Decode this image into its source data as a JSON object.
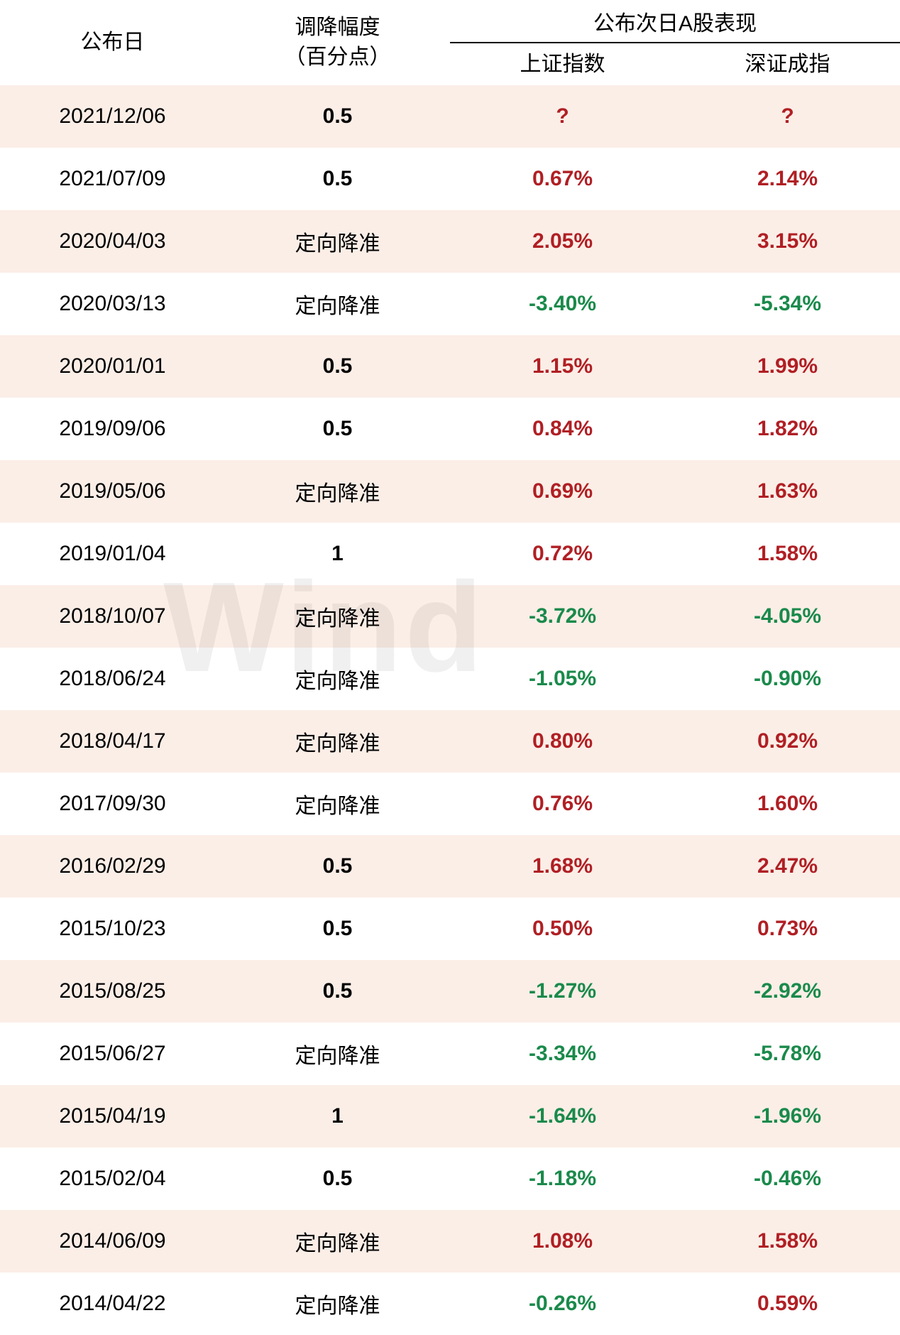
{
  "colors": {
    "positive": "#b01f24",
    "negative": "#1a8a4b",
    "text": "#000000",
    "row_odd_bg": "#fbeee7",
    "row_even_bg": "#ffffff"
  },
  "watermark": "Wind",
  "headers": {
    "date": "公布日",
    "amount_line1": "调降幅度",
    "amount_line2": "（百分点）",
    "group": "公布次日A股表现",
    "sh": "上证指数",
    "sz": "深证成指"
  },
  "column_widths": [
    "25%",
    "25%",
    "25%",
    "25%"
  ],
  "rows": [
    {
      "date": "2021/12/06",
      "amount": "0.5",
      "sh": "?",
      "sh_type": "unknown",
      "sz": "?",
      "sz_type": "unknown"
    },
    {
      "date": "2021/07/09",
      "amount": "0.5",
      "sh": "0.67%",
      "sh_type": "pos",
      "sz": "2.14%",
      "sz_type": "pos"
    },
    {
      "date": "2020/04/03",
      "amount": "定向降准",
      "sh": "2.05%",
      "sh_type": "pos",
      "sz": "3.15%",
      "sz_type": "pos"
    },
    {
      "date": "2020/03/13",
      "amount": "定向降准",
      "sh": "-3.40%",
      "sh_type": "neg",
      "sz": "-5.34%",
      "sz_type": "neg"
    },
    {
      "date": "2020/01/01",
      "amount": "0.5",
      "sh": "1.15%",
      "sh_type": "pos",
      "sz": "1.99%",
      "sz_type": "pos"
    },
    {
      "date": "2019/09/06",
      "amount": "0.5",
      "sh": "0.84%",
      "sh_type": "pos",
      "sz": "1.82%",
      "sz_type": "pos"
    },
    {
      "date": "2019/05/06",
      "amount": "定向降准",
      "sh": "0.69%",
      "sh_type": "pos",
      "sz": "1.63%",
      "sz_type": "pos"
    },
    {
      "date": "2019/01/04",
      "amount": "1",
      "sh": "0.72%",
      "sh_type": "pos",
      "sz": "1.58%",
      "sz_type": "pos"
    },
    {
      "date": "2018/10/07",
      "amount": "定向降准",
      "sh": "-3.72%",
      "sh_type": "neg",
      "sz": "-4.05%",
      "sz_type": "neg"
    },
    {
      "date": "2018/06/24",
      "amount": "定向降准",
      "sh": "-1.05%",
      "sh_type": "neg",
      "sz": "-0.90%",
      "sz_type": "neg"
    },
    {
      "date": "2018/04/17",
      "amount": "定向降准",
      "sh": "0.80%",
      "sh_type": "pos",
      "sz": "0.92%",
      "sz_type": "pos"
    },
    {
      "date": "2017/09/30",
      "amount": "定向降准",
      "sh": "0.76%",
      "sh_type": "pos",
      "sz": "1.60%",
      "sz_type": "pos"
    },
    {
      "date": "2016/02/29",
      "amount": "0.5",
      "sh": "1.68%",
      "sh_type": "pos",
      "sz": "2.47%",
      "sz_type": "pos"
    },
    {
      "date": "2015/10/23",
      "amount": "0.5",
      "sh": "0.50%",
      "sh_type": "pos",
      "sz": "0.73%",
      "sz_type": "pos"
    },
    {
      "date": "2015/08/25",
      "amount": "0.5",
      "sh": "-1.27%",
      "sh_type": "neg",
      "sz": "-2.92%",
      "sz_type": "neg"
    },
    {
      "date": "2015/06/27",
      "amount": "定向降准",
      "sh": "-3.34%",
      "sh_type": "neg",
      "sz": "-5.78%",
      "sz_type": "neg"
    },
    {
      "date": "2015/04/19",
      "amount": "1",
      "sh": "-1.64%",
      "sh_type": "neg",
      "sz": "-1.96%",
      "sz_type": "neg"
    },
    {
      "date": "2015/02/04",
      "amount": "0.5",
      "sh": "-1.18%",
      "sh_type": "neg",
      "sz": "-0.46%",
      "sz_type": "neg"
    },
    {
      "date": "2014/06/09",
      "amount": "定向降准",
      "sh": "1.08%",
      "sh_type": "pos",
      "sz": "1.58%",
      "sz_type": "pos"
    },
    {
      "date": "2014/04/22",
      "amount": "定向降准",
      "sh": "-0.26%",
      "sh_type": "neg",
      "sz": "0.59%",
      "sz_type": "pos"
    }
  ]
}
